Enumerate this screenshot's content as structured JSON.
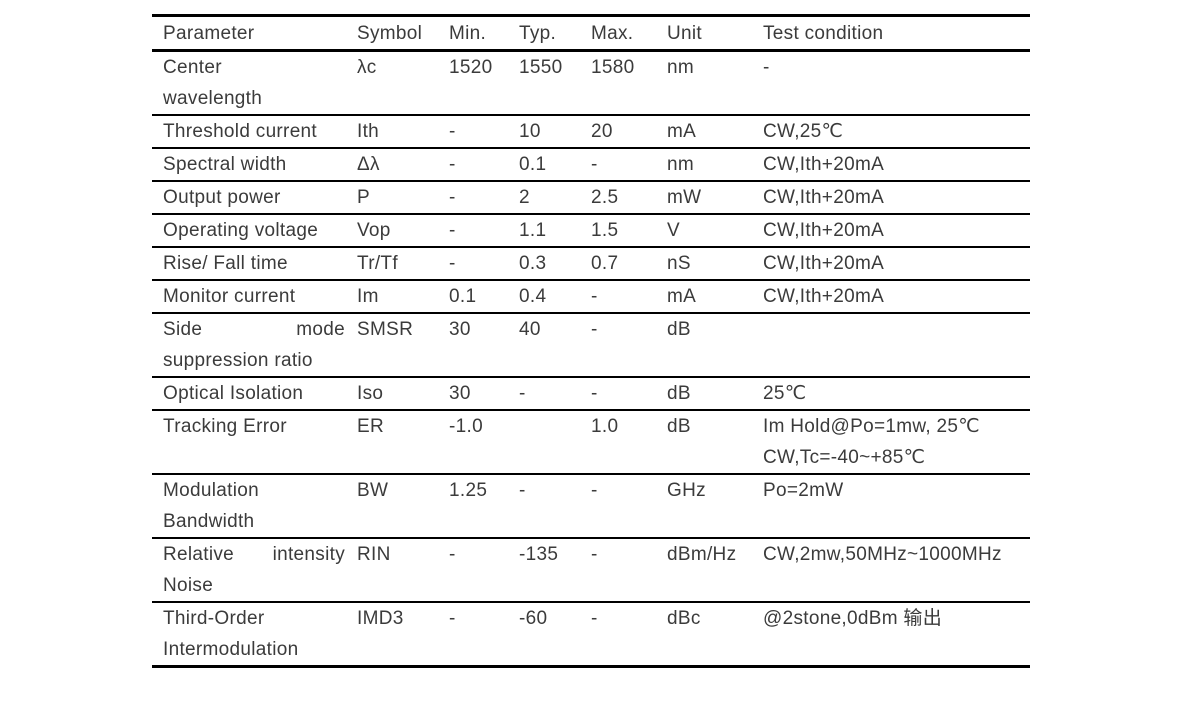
{
  "colors": {
    "background": "#ffffff",
    "text": "#3b3b3b",
    "border": "#000000"
  },
  "table": {
    "headers": [
      "Parameter",
      "Symbol",
      "Min.",
      "Typ.",
      "Max.",
      "Unit",
      "Test condition"
    ],
    "rows": [
      {
        "param_lines": [
          "Center",
          "wavelength"
        ],
        "param_justify": false,
        "symbol": "λc",
        "min": "1520",
        "typ": "1550",
        "max": "1580",
        "unit": "nm",
        "test_lines": [
          "-"
        ]
      },
      {
        "param_lines": [
          "Threshold current"
        ],
        "param_justify": false,
        "symbol": "Ith",
        "min": "-",
        "typ": "10",
        "max": "20",
        "unit": "mA",
        "test_lines": [
          "CW,25℃"
        ]
      },
      {
        "param_lines": [
          "Spectral width"
        ],
        "param_justify": false,
        "symbol": "Δλ",
        "min": "-",
        "typ": "0.1",
        "max": "-",
        "unit": "nm",
        "test_lines": [
          "CW,Ith+20mA"
        ]
      },
      {
        "param_lines": [
          "Output power"
        ],
        "param_justify": false,
        "symbol": "P",
        "min": "-",
        "typ": "2",
        "max": "2.5",
        "unit": "mW",
        "test_lines": [
          "CW,Ith+20mA"
        ]
      },
      {
        "param_lines": [
          "Operating voltage"
        ],
        "param_justify": false,
        "symbol": "Vop",
        "min": "-",
        "typ": "1.1",
        "max": "1.5",
        "unit": "V",
        "test_lines": [
          "CW,Ith+20mA"
        ]
      },
      {
        "param_lines": [
          "Rise/ Fall time"
        ],
        "param_justify": false,
        "symbol": "Tr/Tf",
        "min": "-",
        "typ": "0.3",
        "max": "0.7",
        "unit": "nS",
        "test_lines": [
          "CW,Ith+20mA"
        ]
      },
      {
        "param_lines": [
          "Monitor current"
        ],
        "param_justify": false,
        "symbol": "Im",
        "min": "0.1",
        "typ": "0.4",
        "max": "-",
        "unit": "mA",
        "test_lines": [
          "CW,Ith+20mA"
        ]
      },
      {
        "param_lines": [
          "Side mode",
          "suppression ratio"
        ],
        "param_justify": true,
        "symbol": "SMSR",
        "min": "30",
        "typ": "40",
        "max": "-",
        "unit": "dB",
        "test_lines": []
      },
      {
        "param_lines": [
          "Optical Isolation"
        ],
        "param_justify": false,
        "symbol": "Iso",
        "min": "30",
        "typ": "-",
        "max": "-",
        "unit": "dB",
        "test_lines": [
          "25℃"
        ]
      },
      {
        "param_lines": [
          "Tracking Error"
        ],
        "param_justify": false,
        "symbol": "ER",
        "min": "-1.0",
        "typ": "",
        "max": "1.0",
        "unit": "dB",
        "test_lines": [
          "Im Hold@Po=1mw, 25℃",
          "CW,Tc=-40~+85℃"
        ]
      },
      {
        "param_lines": [
          "Modulation",
          "Bandwidth"
        ],
        "param_justify": false,
        "symbol": "BW",
        "min": "1.25",
        "typ": "-",
        "max": "-",
        "unit": "GHz",
        "test_lines": [
          "Po=2mW"
        ]
      },
      {
        "param_lines": [
          "Relative intensity",
          "Noise"
        ],
        "param_justify": true,
        "symbol": "RIN",
        "min": "-",
        "typ": "-135",
        "max": "-",
        "unit": "dBm/Hz",
        "test_lines": [
          "CW,2mw,50MHz~1000MHz"
        ]
      },
      {
        "param_lines": [
          "Third-Order",
          "Intermodulation"
        ],
        "param_justify": false,
        "symbol": "IMD3",
        "min": "-",
        "typ": "-60",
        "max": "-",
        "unit": "dBc",
        "test_lines": [
          "@2stone,0dBm 输出"
        ]
      }
    ]
  }
}
